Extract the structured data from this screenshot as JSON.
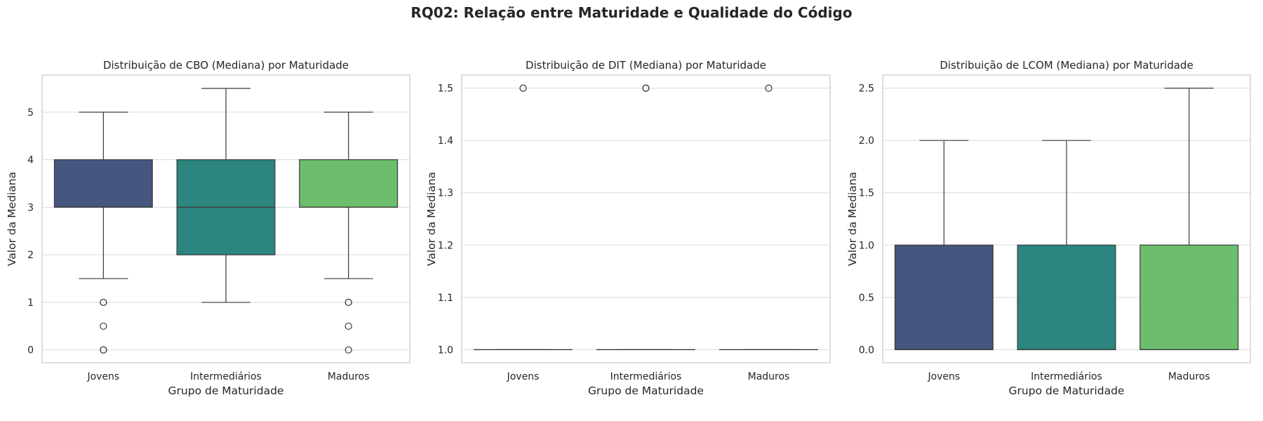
{
  "figure": {
    "title": "RQ02: Relação entre Maturidade e Qualidade do Código"
  },
  "colors": {
    "Jovens": "#46567f",
    "Intermediários": "#2c857e",
    "Maduros": "#6cbe6c",
    "grid": "#d9d9d9",
    "axes_edge": "#cccccc",
    "line": "#3a3a3a"
  },
  "chart_data": [
    {
      "type": "box",
      "title": "Distribuição de CBO (Mediana) por Maturidade",
      "xlabel": "Grupo de Maturidade",
      "ylabel": "Valor da Mediana",
      "categories": [
        "Jovens",
        "Intermediários",
        "Maduros"
      ],
      "ylim": [
        -0.27,
        5.78
      ],
      "yticks": [
        0,
        1,
        2,
        3,
        4,
        5
      ],
      "ytick_labels": [
        "0",
        "1",
        "2",
        "3",
        "4",
        "5"
      ],
      "grid": true,
      "boxes": [
        {
          "category": "Jovens",
          "whisker_low": 1.5,
          "q1": 3,
          "median": 3,
          "q3": 4,
          "whisker_high": 5,
          "outliers": [
            1,
            1,
            0.5,
            0,
            0
          ]
        },
        {
          "category": "Intermediários",
          "whisker_low": 1,
          "q1": 2,
          "median": 3,
          "q3": 4,
          "whisker_high": 5.5,
          "outliers": []
        },
        {
          "category": "Maduros",
          "whisker_low": 1.5,
          "q1": 3,
          "median": 3,
          "q3": 4,
          "whisker_high": 5,
          "outliers": [
            1,
            1,
            0.5,
            0
          ]
        }
      ]
    },
    {
      "type": "box",
      "title": "Distribuição de DIT (Mediana) por Maturidade",
      "xlabel": "Grupo de Maturidade",
      "ylabel": "Valor da Mediana",
      "categories": [
        "Jovens",
        "Intermediários",
        "Maduros"
      ],
      "ylim": [
        0.975,
        1.525
      ],
      "yticks": [
        1.0,
        1.1,
        1.2,
        1.3,
        1.4,
        1.5
      ],
      "ytick_labels": [
        "1.0",
        "1.1",
        "1.2",
        "1.3",
        "1.4",
        "1.5"
      ],
      "grid": true,
      "boxes": [
        {
          "category": "Jovens",
          "whisker_low": 1,
          "q1": 1,
          "median": 1,
          "q3": 1,
          "whisker_high": 1,
          "outliers": [
            1.5
          ]
        },
        {
          "category": "Intermediários",
          "whisker_low": 1,
          "q1": 1,
          "median": 1,
          "q3": 1,
          "whisker_high": 1,
          "outliers": [
            1.5,
            1.5
          ]
        },
        {
          "category": "Maduros",
          "whisker_low": 1,
          "q1": 1,
          "median": 1,
          "q3": 1,
          "whisker_high": 1,
          "outliers": [
            1.5
          ]
        }
      ]
    },
    {
      "type": "box",
      "title": "Distribuição de LCOM (Mediana) por Maturidade",
      "xlabel": "Grupo de Maturidade",
      "ylabel": "Valor da Mediana",
      "categories": [
        "Jovens",
        "Intermediários",
        "Maduros"
      ],
      "ylim": [
        -0.125,
        2.625
      ],
      "yticks": [
        0,
        0.5,
        1.0,
        1.5,
        2.0,
        2.5
      ],
      "ytick_labels": [
        "0.0",
        "0.5",
        "1.0",
        "1.5",
        "2.0",
        "2.5"
      ],
      "grid": true,
      "boxes": [
        {
          "category": "Jovens",
          "whisker_low": 0,
          "q1": 0,
          "median": 0,
          "q3": 1,
          "whisker_high": 2,
          "outliers": []
        },
        {
          "category": "Intermediários",
          "whisker_low": 0,
          "q1": 0,
          "median": 0,
          "q3": 1,
          "whisker_high": 2,
          "outliers": []
        },
        {
          "category": "Maduros",
          "whisker_low": 0,
          "q1": 0,
          "median": 0,
          "q3": 1,
          "whisker_high": 2.5,
          "outliers": []
        }
      ]
    }
  ]
}
